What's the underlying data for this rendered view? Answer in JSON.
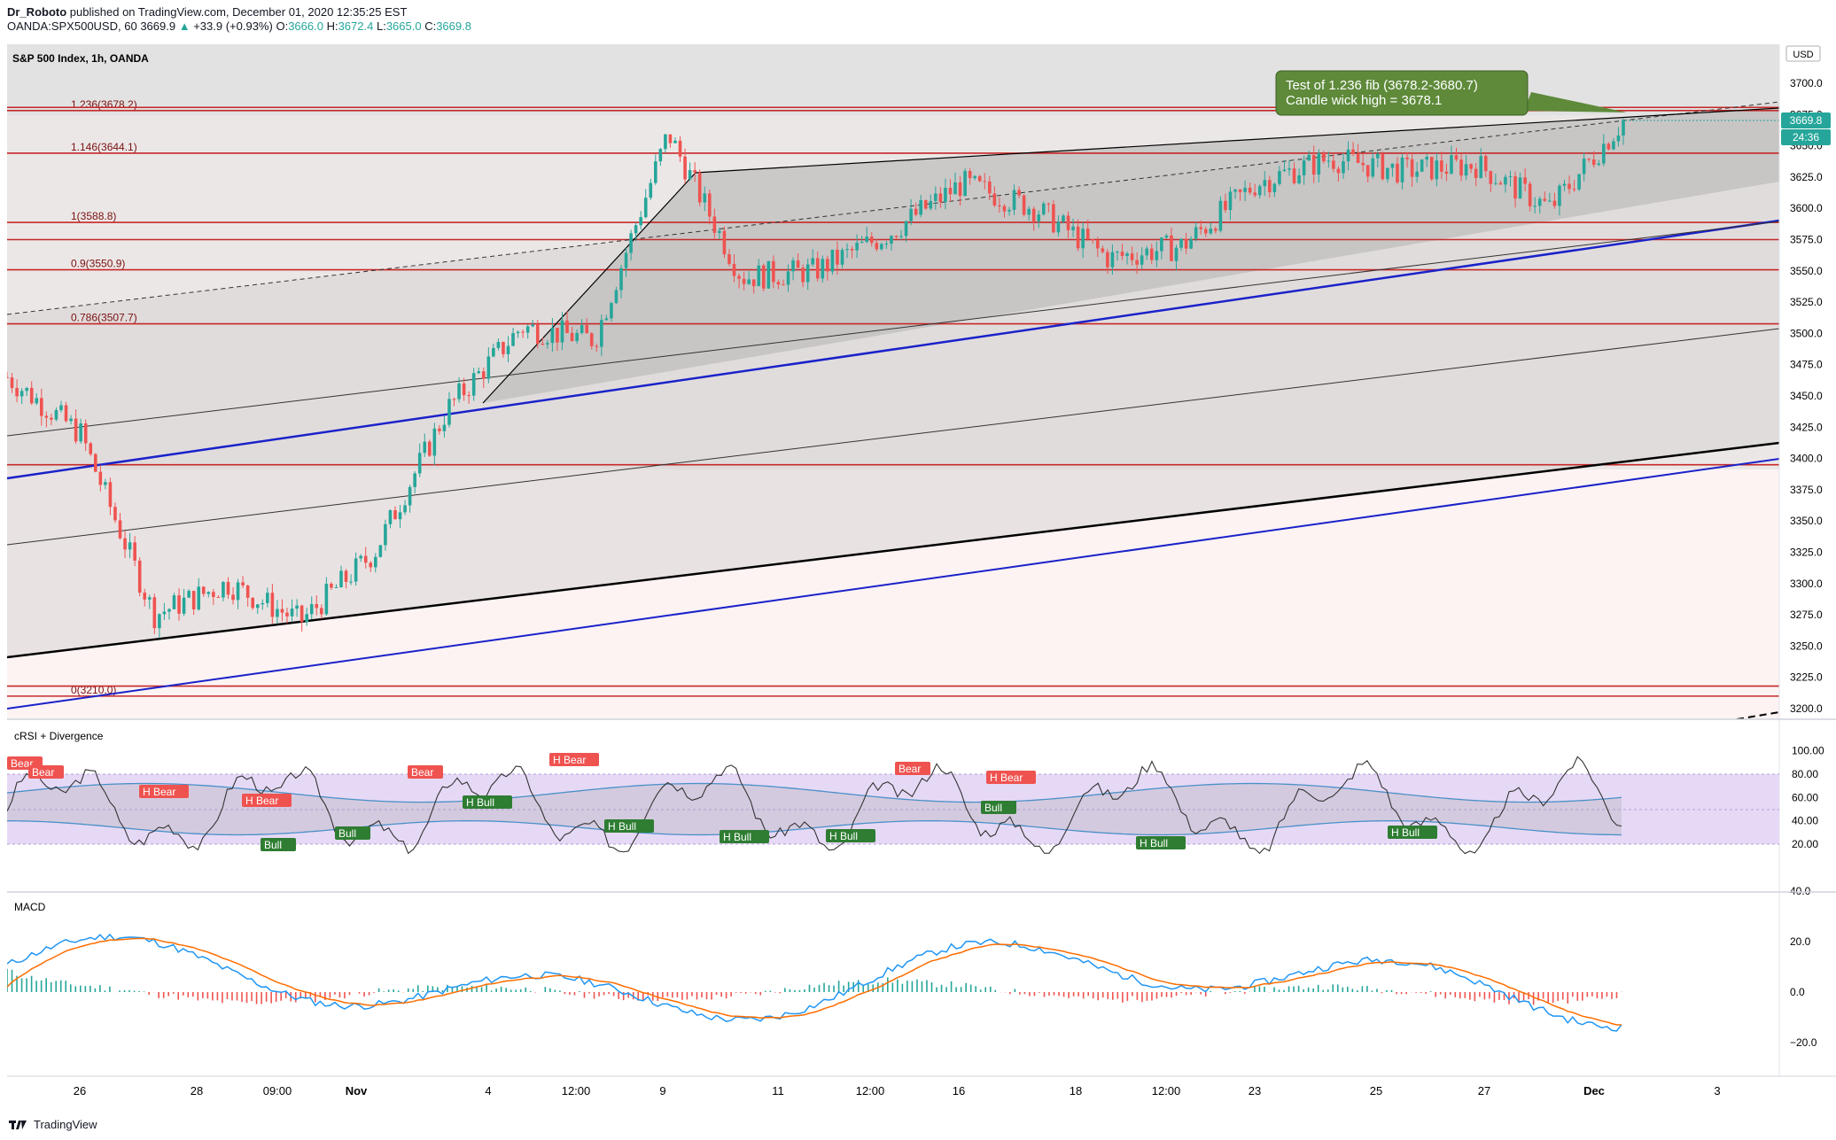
{
  "header": {
    "author": "Dr_Roboto",
    "published": "published on TradingView.com, December 01, 2020 12:35:25 EST",
    "symbol": "OANDA:SPX500USD, 60",
    "last": "3669.9",
    "arrow": "▲",
    "change": "+33.9 (+0.93%)",
    "o_label": "O:",
    "o_val": "3666.0",
    "h_label": "H:",
    "h_val": "3672.4",
    "l_label": "L:",
    "l_val": "3665.0",
    "c_label": "C:",
    "c_val": "3669.8"
  },
  "pane_title": "S&P 500 Index, 1h, OANDA",
  "currency": "USD",
  "price_badge": "3669.8",
  "countdown_badge": "24:36",
  "callout": {
    "line1": "Test of 1.236 fib (3678.2-3680.7)",
    "line2": "Candle wick high = 3678.1"
  },
  "fib_labels": [
    "1.236(3678.2)",
    "1.146(3644.1)",
    "1(3588.8)",
    "0.9(3550.9)",
    "0.786(3507.7)",
    "0(3210.0)"
  ],
  "price_ticks": [
    "3700.0",
    "3675.0",
    "3650.0",
    "3625.0",
    "3600.0",
    "3575.0",
    "3550.0",
    "3525.0",
    "3500.0",
    "3475.0",
    "3450.0",
    "3425.0",
    "3400.0",
    "3375.0",
    "3350.0",
    "3325.0",
    "3300.0",
    "3275.0",
    "3250.0",
    "3225.0",
    "3200.0"
  ],
  "crsi_title": "cRSI + Divergence",
  "crsi_ticks": [
    "100.00",
    "80.00",
    "60.00",
    "40.00",
    "20.00"
  ],
  "macd_title": "MACD",
  "macd_ticks": [
    "40.0",
    "20.0",
    "0.0",
    "−20.0"
  ],
  "x_labels": [
    "26",
    "28",
    "09:00",
    "Nov",
    "4",
    "12:00",
    "9",
    "11",
    "12:00",
    "16",
    "18",
    "12:00",
    "23",
    "25",
    "27",
    "Dec",
    "3"
  ],
  "div_labels": {
    "bear": [
      "Bear",
      "Bear",
      "H Bear",
      "H Bear",
      "Bear",
      "H Bear",
      "Bear",
      "H Bear"
    ],
    "bull": [
      "Bull",
      "Bull",
      "H Bull",
      "H Bull",
      "H Bull",
      "H Bull",
      "Bull",
      "H Bull",
      "H Bull"
    ]
  },
  "footer_brand": "TradingView",
  "colors": {
    "up": "#26a69a",
    "down": "#ef5350",
    "fib_line": "#b71c1c",
    "channel_blue": "#1a22c9",
    "callout_bg": "#5e8a3a",
    "crsi_band": "#e6d9f5",
    "crsi_line": "#4a90c8",
    "macd_line": "#2196f3",
    "signal_line": "#ff6d00"
  },
  "chart_data": {
    "type": "candlestick",
    "instrument": "OANDA:SPX500USD",
    "timeframe": "1h",
    "price_range": [
      3200,
      3720
    ],
    "price_path_approx": [
      {
        "x": "Oct 23",
        "price": 3465
      },
      {
        "x": "Oct 26",
        "price": 3420
      },
      {
        "x": "Oct 28",
        "price": 3275
      },
      {
        "x": "Oct 29",
        "price": 3300
      },
      {
        "x": "Oct 30",
        "price": 3270
      },
      {
        "x": "Nov 2",
        "price": 3325
      },
      {
        "x": "Nov 4",
        "price": 3440
      },
      {
        "x": "Nov 5",
        "price": 3505
      },
      {
        "x": "Nov 6",
        "price": 3495
      },
      {
        "x": "Nov 9",
        "price": 3660
      },
      {
        "x": "Nov 10",
        "price": 3545
      },
      {
        "x": "Nov 12",
        "price": 3550
      },
      {
        "x": "Nov 13",
        "price": 3580
      },
      {
        "x": "Nov 16",
        "price": 3620
      },
      {
        "x": "Nov 18",
        "price": 3600
      },
      {
        "x": "Nov 19",
        "price": 3560
      },
      {
        "x": "Nov 23",
        "price": 3570
      },
      {
        "x": "Nov 24",
        "price": 3620
      },
      {
        "x": "Nov 25",
        "price": 3640
      },
      {
        "x": "Nov 26",
        "price": 3630
      },
      {
        "x": "Nov 27",
        "price": 3635
      },
      {
        "x": "Nov 30",
        "price": 3600
      },
      {
        "x": "Dec 1",
        "price": 3669.8
      }
    ],
    "fib_levels": [
      {
        "ratio": 1.236,
        "price": 3678.2
      },
      {
        "ratio": 1.146,
        "price": 3644.1
      },
      {
        "ratio": 1,
        "price": 3588.8
      },
      {
        "ratio": 0.9,
        "price": 3550.9
      },
      {
        "ratio": 0.786,
        "price": 3507.7
      },
      {
        "ratio": 0,
        "price": 3210.0
      }
    ],
    "crsi_range": [
      0,
      100
    ],
    "macd_range": [
      -30,
      40
    ]
  }
}
